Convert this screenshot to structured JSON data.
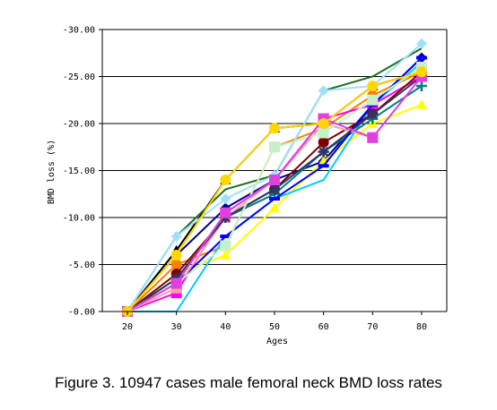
{
  "caption": "Figure 3. 10947 cases male femoral neck BMD loss rates",
  "chart_data": {
    "type": "line",
    "title": "",
    "xlabel": "Ages",
    "ylabel": "BMD loss (%)",
    "x": [
      20,
      30,
      40,
      50,
      60,
      70,
      80
    ],
    "x_tick_labels": [
      "20",
      "30",
      "40",
      "50",
      "60",
      "70",
      "80"
    ],
    "ylim": [
      0,
      -30
    ],
    "y_ticks": [
      0,
      -5,
      -10,
      -15,
      -20,
      -25,
      -30
    ],
    "y_tick_labels": [
      "-0.00",
      "-5.00",
      "-10.00",
      "-15.00",
      "-20.00",
      "-25.00",
      "-30.00"
    ],
    "y_axis_inverted": true,
    "grid": "horizontal",
    "legend": "none",
    "series": [
      {
        "color": "#000000",
        "marker": "triangle",
        "values": [
          0,
          -6.5,
          -14,
          -19.5,
          -20,
          -24,
          -25.5
        ]
      },
      {
        "color": "#00008B",
        "marker": "diamond",
        "values": [
          0,
          -6,
          -11,
          -14,
          -16,
          -22,
          -27
        ]
      },
      {
        "color": "#1E6B1E",
        "marker": "none",
        "values": [
          0,
          -8,
          -13,
          -14.5,
          -23.5,
          -25,
          -28
        ]
      },
      {
        "color": "#FF7F00",
        "marker": "circle",
        "values": [
          0,
          -5,
          -7,
          -17.5,
          -19.5,
          -23,
          -25.5
        ]
      },
      {
        "color": "#FF00FF",
        "marker": "square",
        "values": [
          0,
          -2,
          -10.5,
          -14,
          -20.5,
          -22,
          -25
        ]
      },
      {
        "color": "#FFFF00",
        "marker": "triangle",
        "values": [
          0,
          -4,
          -6,
          -11,
          -16,
          -20,
          -22
        ]
      },
      {
        "color": "#00CCFF",
        "marker": "none",
        "values": [
          0,
          0,
          -8,
          -12,
          -14,
          -22,
          -26.5
        ]
      },
      {
        "color": "#800000",
        "marker": "circle",
        "values": [
          0,
          -4,
          -10,
          -13,
          -18,
          -21,
          -25.5
        ]
      },
      {
        "color": "#008080",
        "marker": "plus",
        "values": [
          0,
          -3.5,
          -10,
          -12.5,
          -17,
          -20.5,
          -24
        ]
      },
      {
        "color": "#0000FF",
        "marker": "dash",
        "values": [
          0,
          -3,
          -8,
          -12,
          -15.5,
          -22,
          -27
        ]
      },
      {
        "color": "#A0E0FF",
        "marker": "diamond",
        "values": [
          0,
          -8,
          -12,
          -14.5,
          -23.5,
          -24,
          -28.5
        ]
      },
      {
        "color": "#F4A0A0",
        "marker": "square",
        "values": [
          0,
          -2.5,
          -10,
          -14,
          -20,
          -18.5,
          -25
        ]
      },
      {
        "color": "#333366",
        "marker": "star",
        "values": [
          0,
          -3.5,
          -10,
          -13,
          -17,
          -21,
          -25
        ]
      },
      {
        "color": "#C8F0C8",
        "marker": "square",
        "values": [
          0,
          -3,
          -7,
          -17.5,
          -19,
          -22.5,
          -26
        ]
      },
      {
        "color": "#E040E0",
        "marker": "square",
        "values": [
          0,
          -3,
          -10.5,
          -14,
          -20.5,
          -18.5,
          -25
        ]
      },
      {
        "color": "#FFD700",
        "marker": "circle",
        "values": [
          0,
          -6,
          -14,
          -19.5,
          -20,
          -24,
          -25.5
        ]
      }
    ]
  }
}
